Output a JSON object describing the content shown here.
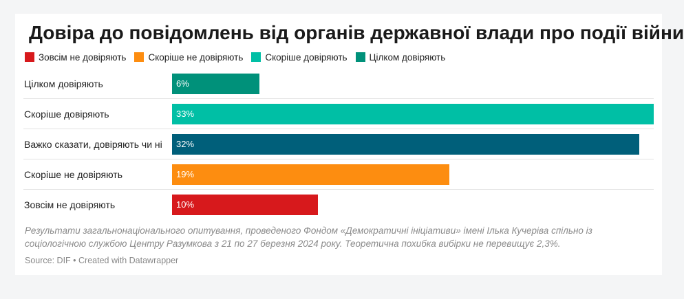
{
  "chart_data": {
    "type": "bar",
    "orientation": "horizontal",
    "title": "Довіра до повідомлень від органів державної влади про події війни",
    "legend": [
      {
        "label": "Зовсім не довіряють",
        "color": "#d7191c"
      },
      {
        "label": "Скоріше не довіряють",
        "color": "#fd8d10"
      },
      {
        "label": "Скоріше довіряють",
        "color": "#00bfa5"
      },
      {
        "label": "Цілком довіряють",
        "color": "#00917a"
      }
    ],
    "legend_position": "top-left",
    "categories": [
      "Цілком довіряють",
      "Скоріше довіряють",
      "Важко сказати, довіряють чи ні",
      "Скоріше не довіряють",
      "Зовсім не довіряють"
    ],
    "values": [
      6,
      33,
      32,
      19,
      10
    ],
    "value_labels": [
      "6%",
      "33%",
      "32%",
      "19%",
      "10%"
    ],
    "colors": [
      "#00917a",
      "#00bfa5",
      "#005f7a",
      "#fd8d10",
      "#d7191c"
    ],
    "xlim": [
      0,
      33
    ],
    "unit": "%",
    "grid": false,
    "note": "Результати загальнонаціонального опитування, проведеного Фондом «Демократичні ініціативи» імені Ілька Кучеріва спільно із соціологічною службою Центру Разумкова з 21 по 27 березня 2024 року. Теоретична похибка вибірки не перевищує 2,3%.",
    "source": "Source: DIF • Created with Datawrapper"
  }
}
